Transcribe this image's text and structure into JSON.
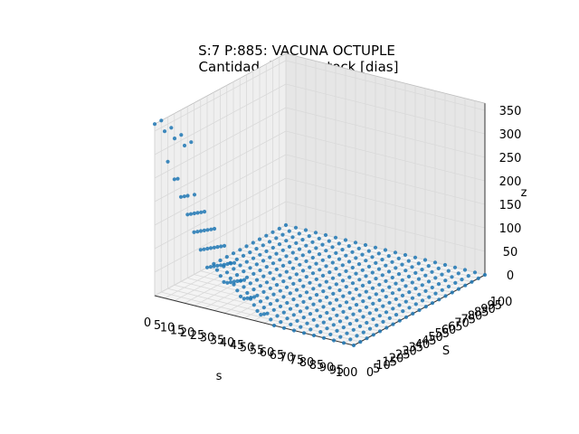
{
  "chart_data": {
    "type": "scatter",
    "projection": "3d",
    "title_line1": "S:7 P:885: VACUNA OCTUPLE",
    "title_line2": "Cantidad dias sin stock [dias]",
    "xlabel": "s",
    "ylabel": "S",
    "zlabel": "z",
    "x_ticks": [
      0,
      5,
      10,
      15,
      20,
      25,
      30,
      35,
      40,
      45,
      50,
      55,
      60,
      65,
      70,
      75,
      80,
      85,
      90,
      95,
      100
    ],
    "x_tick_labels": [
      "0",
      "5",
      "10",
      "15",
      "20",
      "25",
      "30",
      "35",
      "40",
      "45",
      "50",
      "55",
      "60",
      "65",
      "70",
      "75",
      "80",
      "85",
      "90",
      "95",
      "100"
    ],
    "y_ticks": [
      0,
      5,
      10,
      15,
      20,
      25,
      30,
      35,
      40,
      45,
      50,
      55,
      60,
      65,
      70,
      75,
      80,
      85,
      90,
      95,
      100
    ],
    "y_tick_labels": [
      "0",
      "5",
      "10",
      "15",
      "20",
      "25",
      "30",
      "35",
      "40",
      "45",
      "50",
      "55",
      "60",
      "65",
      "70",
      "75",
      "80",
      "85",
      "90",
      "95",
      "100"
    ],
    "z_ticks": [
      0,
      50,
      100,
      150,
      200,
      250,
      300,
      350
    ],
    "z_tick_labels": [
      "0",
      "50",
      "100",
      "150",
      "200",
      "250",
      "300",
      "350"
    ],
    "xlim": [
      0,
      100
    ],
    "ylim": [
      0,
      100
    ],
    "zlim": [
      0,
      365
    ],
    "grid": true,
    "marker_color": "#1f77b4",
    "pane_color": "#f2f2f2",
    "grid_color": "#d9d9d9",
    "grid_step": 5,
    "model_note_s_values": "s from 0 to 100 step 5",
    "points_rule": "z estimated: z ≈ 365 when S ≤ 5 and s small, decaying to 0 as s and S increase"
  }
}
